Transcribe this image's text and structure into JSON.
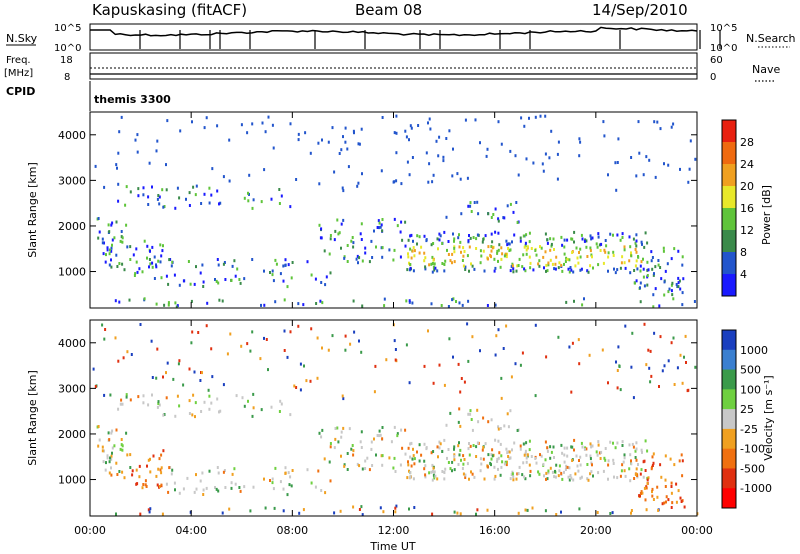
{
  "header": {
    "station": "Kapuskasing (fitACF)",
    "beam": "Beam 08",
    "date": "14/Sep/2010"
  },
  "panels": {
    "nsky": {
      "left_label": "N.Sky",
      "right_label": "N.Search",
      "left_ticks": [
        "10^5",
        "10^0"
      ],
      "right_ticks": [
        "10^5",
        "10^0"
      ]
    },
    "freq": {
      "left_label_1": "Freq.",
      "left_label_2": "[MHz]",
      "right_label": "Nave",
      "left_ticks": [
        "18",
        "8"
      ],
      "right_ticks": [
        "60",
        "0"
      ]
    },
    "cpid": {
      "label": "CPID",
      "value": "themis 3300"
    }
  },
  "chart_data": [
    {
      "type": "heatmap",
      "name": "power",
      "ylabel": "Slant Range [km]",
      "xlabel": "",
      "y_ticks": [
        "1000",
        "2000",
        "3000",
        "4000"
      ],
      "ylim": [
        200,
        4500
      ],
      "x_ticks": [
        "00:00",
        "04:00",
        "08:00",
        "12:00",
        "16:00",
        "20:00",
        "00:00"
      ],
      "xlim_hours": [
        0,
        24
      ],
      "colorbar": {
        "label": "Power [dB]",
        "ticks": [
          "4",
          "8",
          "12",
          "16",
          "20",
          "24",
          "28"
        ],
        "colors": [
          "#1a1aff",
          "#2255cc",
          "#3a8a4a",
          "#5fc43a",
          "#e8e82a",
          "#f0a020",
          "#ef6a10",
          "#e82010"
        ]
      }
    },
    {
      "type": "heatmap",
      "name": "velocity",
      "ylabel": "Slant Range [km]",
      "xlabel": "Time UT",
      "y_ticks": [
        "1000",
        "2000",
        "3000",
        "4000"
      ],
      "ylim": [
        200,
        4500
      ],
      "x_ticks": [
        "00:00",
        "04:00",
        "08:00",
        "12:00",
        "16:00",
        "20:00",
        "00:00"
      ],
      "xlim_hours": [
        0,
        24
      ],
      "colorbar": {
        "label": "Velocity [m s⁻¹]",
        "ticks": [
          "1000",
          "500",
          "100",
          "25",
          "-25",
          "-100",
          "-500",
          "-1000"
        ],
        "colors": [
          "#1a3fbf",
          "#3a7fd0",
          "#3a9a4a",
          "#6fd040",
          "#c8c8c8",
          "#f0a020",
          "#f07010",
          "#e03010",
          "#ff0000"
        ]
      }
    }
  ]
}
